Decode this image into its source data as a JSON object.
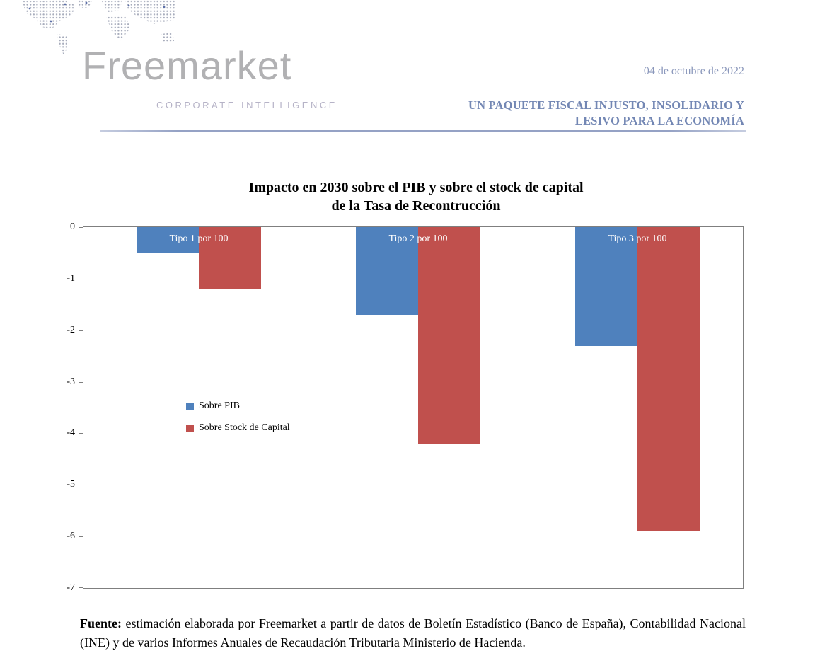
{
  "header": {
    "logo_text": "Freemarket",
    "logo_subtitle": "CORPORATE INTELLIGENCE",
    "date": "04 de octubre de 2022",
    "headline_line1": "UN PAQUETE FISCAL INJUSTO, INSOLIDARIO Y",
    "headline_line2": "LESIVO PARA LA ECONOMÍA",
    "accent_color": "#7387b4"
  },
  "chart": {
    "title_line1": "Impacto en 2030 sobre el PIB y sobre el stock de capital",
    "title_line2": "de la Tasa de Recontrucción"
  },
  "chart_data": {
    "type": "bar",
    "title": "Impacto en 2030 sobre el PIB y sobre el stock de capital de la Tasa de Recontrucción",
    "categories": [
      "Tipo 1 por 100",
      "Tipo 2 por 100",
      "Tipo 3 por 100"
    ],
    "series": [
      {
        "name": "Sobre PIB",
        "color": "#4F81BD",
        "values": [
          -0.5,
          -1.7,
          -2.3
        ]
      },
      {
        "name": "Sobre Stock de Capital",
        "color": "#C0504D",
        "values": [
          -1.2,
          -4.2,
          -5.9
        ]
      }
    ],
    "xlabel": "",
    "ylabel": "",
    "ylim": [
      -7,
      0
    ],
    "yticks": [
      0,
      -1,
      -2,
      -3,
      -4,
      -5,
      -6,
      -7
    ],
    "grid": false,
    "legend_position": "inside-left"
  },
  "footer": {
    "source_bold": "Fuente:",
    "source_text": " estimación elaborada por Freemarket a partir de datos de Boletín Estadístico (Banco de España), Contabilidad Nacional (INE) y de varios Informes Anuales de Recaudación Tributaria Ministerio de Hacienda."
  }
}
